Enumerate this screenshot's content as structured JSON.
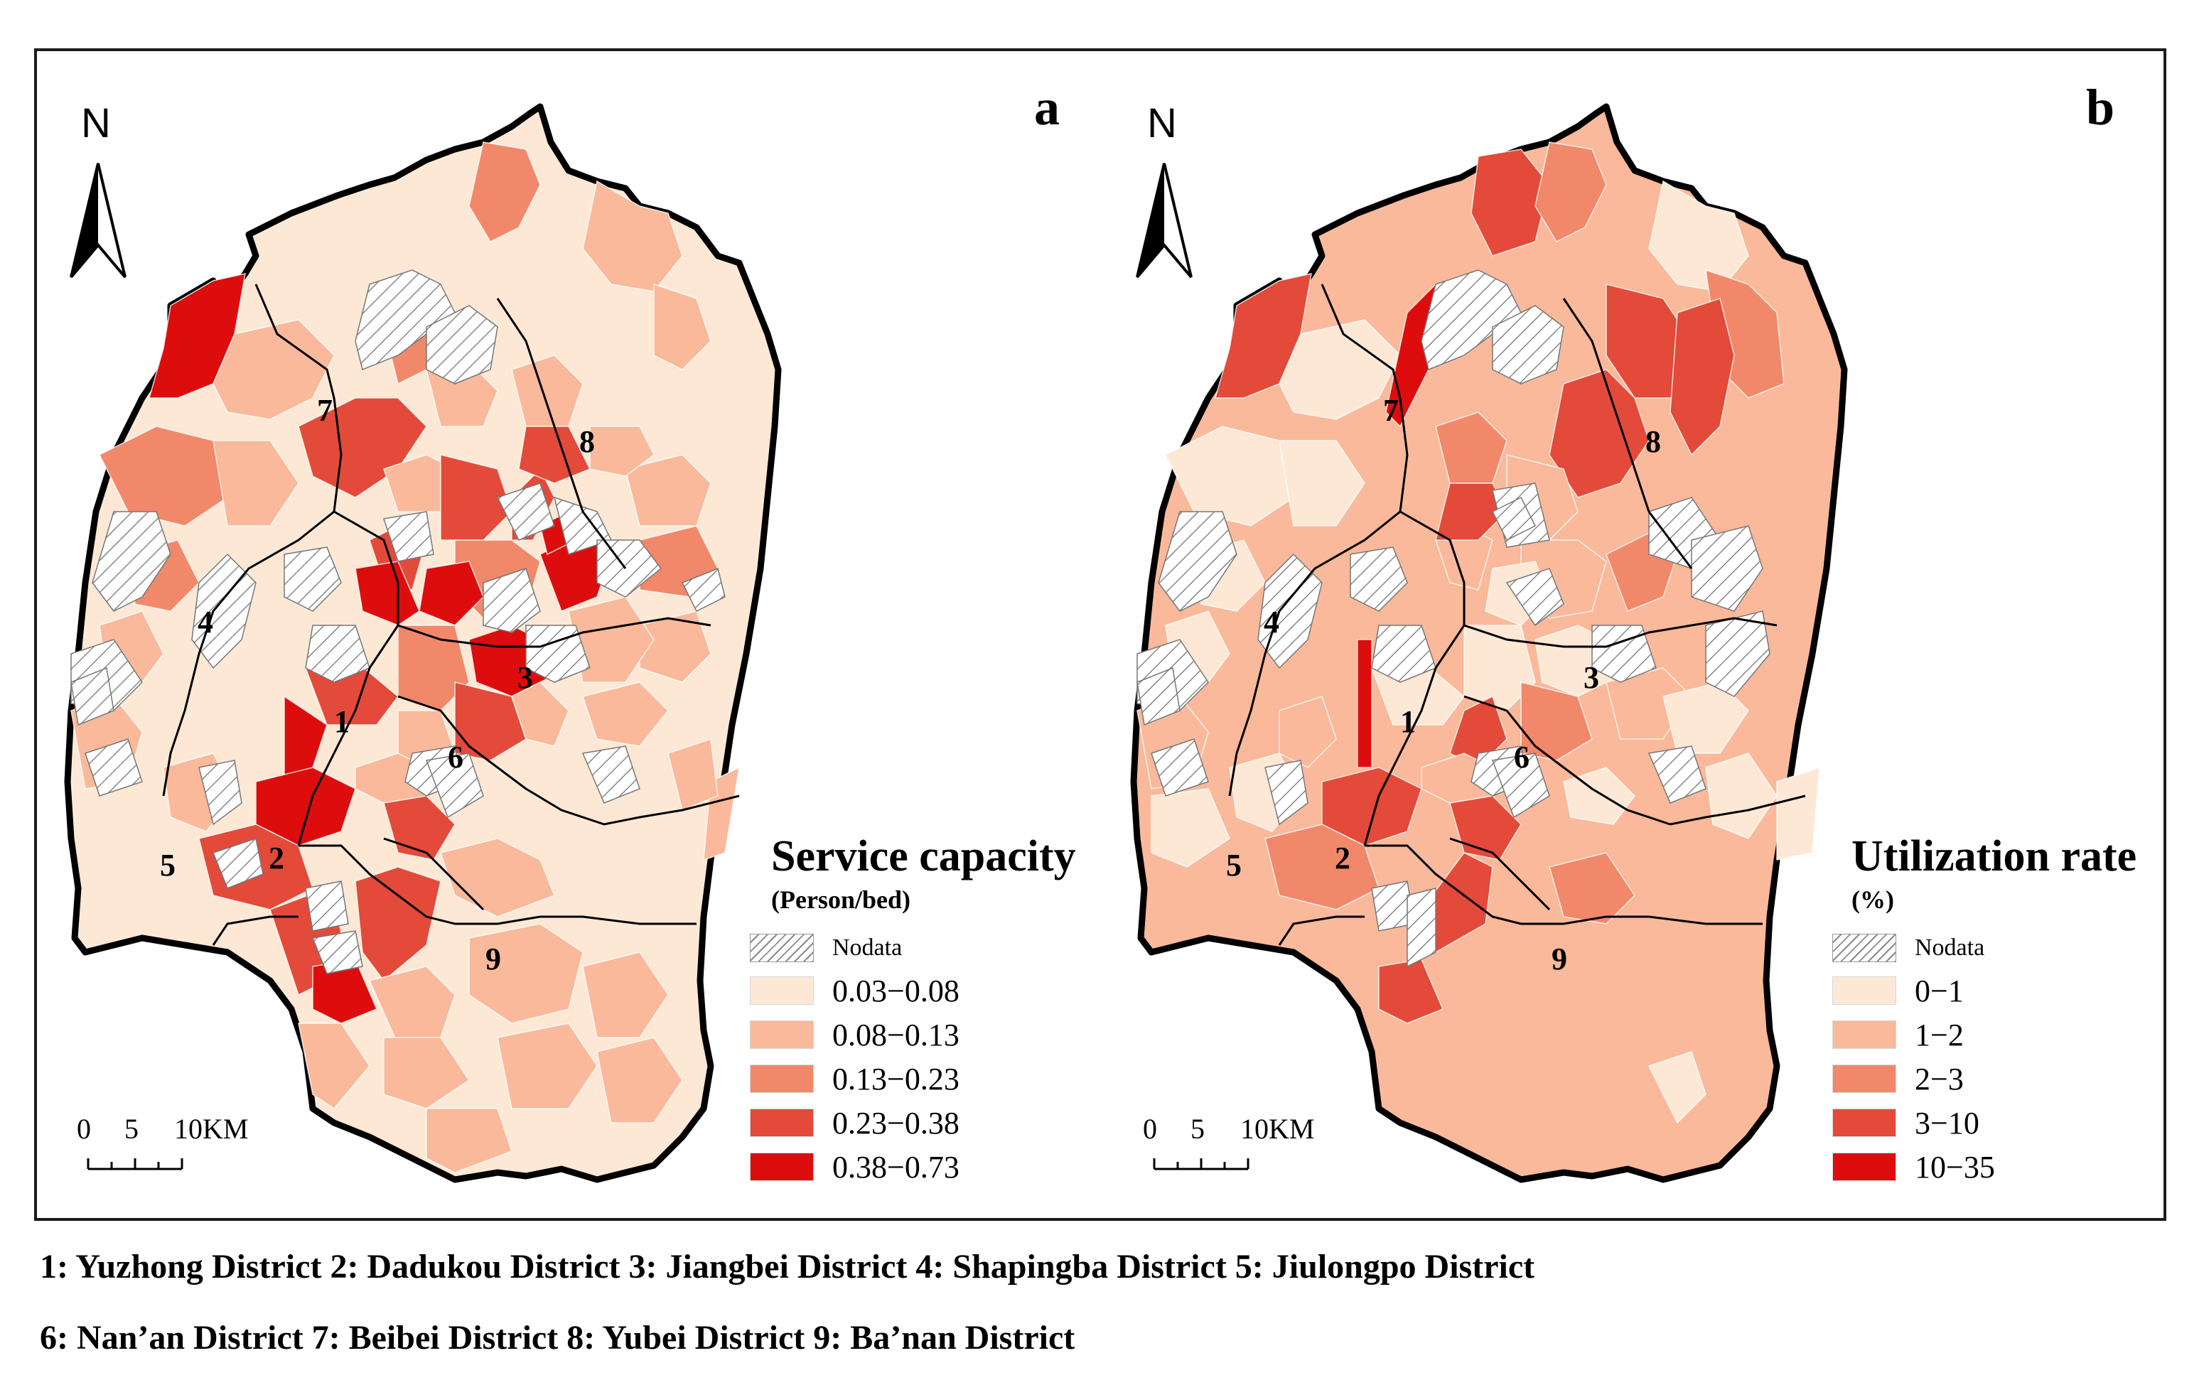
{
  "panels": [
    {
      "letter": "a",
      "north_label": "N",
      "legend": {
        "title": "Service capacity",
        "unit": "(Person/bed)",
        "nodata_label": "Nodata",
        "classes": [
          {
            "label": "0.03−0.08",
            "color": "#fde8d6"
          },
          {
            "label": "0.08−0.13",
            "color": "#f9b99a"
          },
          {
            "label": "0.13−0.23",
            "color": "#f2886a"
          },
          {
            "label": "0.23−0.38",
            "color": "#e34a39"
          },
          {
            "label": "0.38−0.73",
            "color": "#dd0d0d"
          }
        ]
      },
      "scale": {
        "labels": [
          "0",
          "5",
          "10KM"
        ]
      },
      "district_numbers": [
        "1",
        "2",
        "3",
        "4",
        "5",
        "6",
        "7",
        "8",
        "9"
      ]
    },
    {
      "letter": "b",
      "north_label": "N",
      "legend": {
        "title": "Utilization rate",
        "unit": "(%)",
        "nodata_label": "Nodata",
        "classes": [
          {
            "label": "0−1",
            "color": "#fde8d6"
          },
          {
            "label": "1−2",
            "color": "#f9b99a"
          },
          {
            "label": "2−3",
            "color": "#f2886a"
          },
          {
            "label": "3−10",
            "color": "#e34a39"
          },
          {
            "label": "10−35",
            "color": "#dd0d0d"
          }
        ]
      },
      "scale": {
        "labels": [
          "0",
          "5",
          "10KM"
        ]
      },
      "district_numbers": [
        "1",
        "2",
        "3",
        "4",
        "5",
        "6",
        "7",
        "8",
        "9"
      ]
    }
  ],
  "footnote": {
    "line1": "1: Yuzhong District 2: Dadukou District 3: Jiangbei District 4: Shapingba District 5: Jiulongpo District",
    "line2": "6: Nan’an District 7: Beibei District 8: Yubei District 9: Ba’nan District"
  }
}
